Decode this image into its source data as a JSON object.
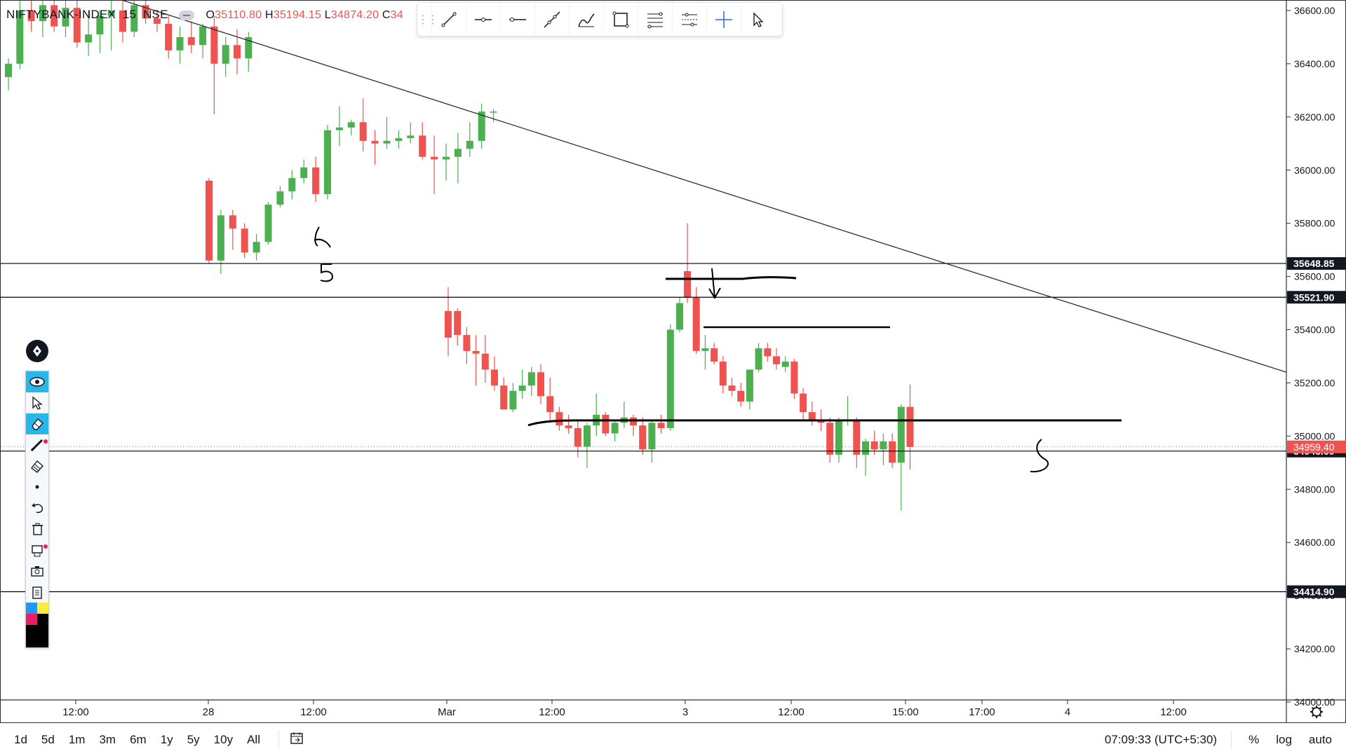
{
  "header": {
    "symbol": "NIFTYBANK-INDEX",
    "interval": "15",
    "exchange": "NSE",
    "ohlc": {
      "o_label": "O",
      "o": "35110.80",
      "h_label": "H",
      "h": "35194.15",
      "l_label": "L",
      "l": "34874.20",
      "c_label": "C",
      "c": "34"
    }
  },
  "drawing_toolbar": {
    "tools": [
      "trend-line",
      "horizontal-ray",
      "horizontal-line",
      "extended-line",
      "brush",
      "rectangle",
      "fib-retracement",
      "parallel-channel",
      "crosshair",
      "cursor"
    ]
  },
  "side_panel": {
    "tools": [
      "eye-icon",
      "cursor-icon",
      "eraser-icon",
      "pen-icon",
      "highlighter-icon",
      "dot-icon",
      "undo-icon",
      "trash-icon",
      "clear-all-icon",
      "camera-icon",
      "clipboard-icon"
    ],
    "palette": [
      "#2196f3",
      "#ffeb3b",
      "#e91e63",
      "#000000",
      "#000000",
      "#000000"
    ]
  },
  "chart_data": {
    "type": "candlestick",
    "symbol": "NIFTYBANK-INDEX",
    "ylim": [
      33900,
      36650
    ],
    "y_ticks": [
      "34000.00",
      "34200.00",
      "34400.00",
      "34600.00",
      "34800.00",
      "35000.00",
      "35200.00",
      "35400.00",
      "35600.00",
      "35800.00",
      "36000.00",
      "36200.00",
      "36400.00",
      "36600.00"
    ],
    "x_ticks": [
      "12:00",
      "28",
      "12:00",
      "Mar",
      "12:00",
      "3",
      "12:00",
      "15:00",
      "17:00",
      "4",
      "12:00"
    ],
    "colors": {
      "up": "#4caf50",
      "down": "#ef5350",
      "line": "#000000",
      "label_bg": "#131722",
      "price_bg": "#ef5350"
    },
    "candles": [
      {
        "o": 36350,
        "h": 36420,
        "l": 36300,
        "c": 36400
      },
      {
        "o": 36400,
        "h": 36650,
        "l": 36380,
        "c": 36600
      },
      {
        "o": 36600,
        "h": 36650,
        "l": 36520,
        "c": 36560
      },
      {
        "o": 36560,
        "h": 36650,
        "l": 36500,
        "c": 36620
      },
      {
        "o": 36620,
        "h": 36650,
        "l": 36520,
        "c": 36540
      },
      {
        "o": 36540,
        "h": 36650,
        "l": 36500,
        "c": 36610
      },
      {
        "o": 36610,
        "h": 36650,
        "l": 36460,
        "c": 36480
      },
      {
        "o": 36480,
        "h": 36600,
        "l": 36430,
        "c": 36510
      },
      {
        "o": 36510,
        "h": 36600,
        "l": 36440,
        "c": 36580
      },
      {
        "o": 36580,
        "h": 36640,
        "l": 36450,
        "c": 36600
      },
      {
        "o": 36600,
        "h": 36650,
        "l": 36480,
        "c": 36520
      },
      {
        "o": 36520,
        "h": 36640,
        "l": 36500,
        "c": 36620
      },
      {
        "o": 36620,
        "h": 36650,
        "l": 36550,
        "c": 36570
      },
      {
        "o": 36570,
        "h": 36600,
        "l": 36520,
        "c": 36550
      },
      {
        "o": 36550,
        "h": 36580,
        "l": 36420,
        "c": 36450
      },
      {
        "o": 36450,
        "h": 36540,
        "l": 36400,
        "c": 36500
      },
      {
        "o": 36500,
        "h": 36560,
        "l": 36440,
        "c": 36470
      },
      {
        "o": 36470,
        "h": 36550,
        "l": 36420,
        "c": 36540
      },
      {
        "o": 36540,
        "h": 36580,
        "l": 36210,
        "c": 36400
      },
      {
        "o": 36400,
        "h": 36500,
        "l": 36350,
        "c": 36470
      },
      {
        "o": 36470,
        "h": 36530,
        "l": 36360,
        "c": 36420
      },
      {
        "o": 36420,
        "h": 36520,
        "l": 36370,
        "c": 36500
      },
      {
        "o": 35960,
        "h": 35970,
        "l": 35650,
        "c": 35660
      },
      {
        "o": 35660,
        "h": 35850,
        "l": 35610,
        "c": 35830
      },
      {
        "o": 35830,
        "h": 35850,
        "l": 35700,
        "c": 35780
      },
      {
        "o": 35780,
        "h": 35800,
        "l": 35670,
        "c": 35690
      },
      {
        "o": 35690,
        "h": 35760,
        "l": 35660,
        "c": 35730
      },
      {
        "o": 35730,
        "h": 35880,
        "l": 35720,
        "c": 35870
      },
      {
        "o": 35870,
        "h": 35940,
        "l": 35860,
        "c": 35920
      },
      {
        "o": 35920,
        "h": 36000,
        "l": 35890,
        "c": 35970
      },
      {
        "o": 35970,
        "h": 36040,
        "l": 35950,
        "c": 36010
      },
      {
        "o": 36010,
        "h": 36050,
        "l": 35880,
        "c": 35910
      },
      {
        "o": 35910,
        "h": 36170,
        "l": 35890,
        "c": 36150
      },
      {
        "o": 36150,
        "h": 36240,
        "l": 36090,
        "c": 36160
      },
      {
        "o": 36160,
        "h": 36190,
        "l": 36130,
        "c": 36180
      },
      {
        "o": 36180,
        "h": 36270,
        "l": 36070,
        "c": 36110
      },
      {
        "o": 36110,
        "h": 36150,
        "l": 36020,
        "c": 36100
      },
      {
        "o": 36100,
        "h": 36200,
        "l": 36080,
        "c": 36110
      },
      {
        "o": 36110,
        "h": 36150,
        "l": 36080,
        "c": 36120
      },
      {
        "o": 36120,
        "h": 36180,
        "l": 36100,
        "c": 36130
      },
      {
        "o": 36130,
        "h": 36180,
        "l": 36040,
        "c": 36050
      },
      {
        "o": 36050,
        "h": 36130,
        "l": 35910,
        "c": 36040
      },
      {
        "o": 36040,
        "h": 36100,
        "l": 35960,
        "c": 36050
      },
      {
        "o": 36050,
        "h": 36140,
        "l": 35950,
        "c": 36080
      },
      {
        "o": 36080,
        "h": 36180,
        "l": 36050,
        "c": 36110
      },
      {
        "o": 36110,
        "h": 36250,
        "l": 36080,
        "c": 36220
      },
      {
        "o": 36220,
        "h": 36230,
        "l": 36180,
        "c": 36220
      },
      {
        "o": 35470,
        "h": 35560,
        "l": 35300,
        "c": 35370
      },
      {
        "o": 35470,
        "h": 35480,
        "l": 35340,
        "c": 35380
      },
      {
        "o": 35380,
        "h": 35410,
        "l": 35270,
        "c": 35320
      },
      {
        "o": 35320,
        "h": 35380,
        "l": 35190,
        "c": 35310
      },
      {
        "o": 35310,
        "h": 35380,
        "l": 35200,
        "c": 35250
      },
      {
        "o": 35250,
        "h": 35300,
        "l": 35170,
        "c": 35190
      },
      {
        "o": 35190,
        "h": 35220,
        "l": 35100,
        "c": 35100
      },
      {
        "o": 35100,
        "h": 35200,
        "l": 35090,
        "c": 35170
      },
      {
        "o": 35170,
        "h": 35250,
        "l": 35140,
        "c": 35190
      },
      {
        "o": 35190,
        "h": 35260,
        "l": 35150,
        "c": 35240
      },
      {
        "o": 35240,
        "h": 35270,
        "l": 35120,
        "c": 35150
      },
      {
        "o": 35150,
        "h": 35220,
        "l": 35050,
        "c": 35090
      },
      {
        "o": 35090,
        "h": 35110,
        "l": 35020,
        "c": 35040
      },
      {
        "o": 35040,
        "h": 35080,
        "l": 35010,
        "c": 35030
      },
      {
        "o": 35030,
        "h": 35060,
        "l": 34920,
        "c": 34960
      },
      {
        "o": 34960,
        "h": 35050,
        "l": 34880,
        "c": 35040
      },
      {
        "o": 35040,
        "h": 35160,
        "l": 35000,
        "c": 35080
      },
      {
        "o": 35080,
        "h": 35090,
        "l": 35000,
        "c": 35010
      },
      {
        "o": 35010,
        "h": 35060,
        "l": 34980,
        "c": 35050
      },
      {
        "o": 35050,
        "h": 35130,
        "l": 35030,
        "c": 35070
      },
      {
        "o": 35070,
        "h": 35080,
        "l": 35000,
        "c": 35040
      },
      {
        "o": 35040,
        "h": 35070,
        "l": 34930,
        "c": 34950
      },
      {
        "o": 34950,
        "h": 35060,
        "l": 34900,
        "c": 35050
      },
      {
        "o": 35050,
        "h": 35080,
        "l": 35010,
        "c": 35030
      },
      {
        "o": 35030,
        "h": 35420,
        "l": 35020,
        "c": 35400
      },
      {
        "o": 35400,
        "h": 35520,
        "l": 35390,
        "c": 35500
      },
      {
        "o": 35620,
        "h": 35800,
        "l": 35500,
        "c": 35520
      },
      {
        "o": 35520,
        "h": 35560,
        "l": 35310,
        "c": 35320
      },
      {
        "o": 35320,
        "h": 35380,
        "l": 35250,
        "c": 35330
      },
      {
        "o": 35330,
        "h": 35350,
        "l": 35270,
        "c": 35280
      },
      {
        "o": 35280,
        "h": 35300,
        "l": 35160,
        "c": 35190
      },
      {
        "o": 35190,
        "h": 35220,
        "l": 35150,
        "c": 35170
      },
      {
        "o": 35170,
        "h": 35200,
        "l": 35110,
        "c": 35130
      },
      {
        "o": 35130,
        "h": 35250,
        "l": 35100,
        "c": 35250
      },
      {
        "o": 35250,
        "h": 35350,
        "l": 35240,
        "c": 35330
      },
      {
        "o": 35330,
        "h": 35350,
        "l": 35280,
        "c": 35300
      },
      {
        "o": 35300,
        "h": 35330,
        "l": 35250,
        "c": 35270
      },
      {
        "o": 35260,
        "h": 35300,
        "l": 35240,
        "c": 35280
      },
      {
        "o": 35280,
        "h": 35290,
        "l": 35140,
        "c": 35160
      },
      {
        "o": 35160,
        "h": 35180,
        "l": 35060,
        "c": 35090
      },
      {
        "o": 35090,
        "h": 35130,
        "l": 35040,
        "c": 35060
      },
      {
        "o": 35060,
        "h": 35100,
        "l": 35020,
        "c": 35050
      },
      {
        "o": 35050,
        "h": 35070,
        "l": 34900,
        "c": 34930
      },
      {
        "o": 34930,
        "h": 35070,
        "l": 34900,
        "c": 35060
      },
      {
        "o": 35060,
        "h": 35150,
        "l": 35040,
        "c": 35060
      },
      {
        "o": 35060,
        "h": 35070,
        "l": 34880,
        "c": 34930
      },
      {
        "o": 34930,
        "h": 34990,
        "l": 34850,
        "c": 34980
      },
      {
        "o": 34980,
        "h": 35020,
        "l": 34930,
        "c": 34950
      },
      {
        "o": 34950,
        "h": 35010,
        "l": 34890,
        "c": 34980
      },
      {
        "o": 34980,
        "h": 35010,
        "l": 34880,
        "c": 34900
      },
      {
        "o": 34900,
        "h": 35120,
        "l": 34720,
        "c": 35110
      },
      {
        "o": 35110,
        "h": 35194,
        "l": 34874,
        "c": 34959
      }
    ],
    "horizontal_lines": [
      {
        "value": 35648.85,
        "label": "35648.85"
      },
      {
        "value": 35521.9,
        "label": "35521.90"
      },
      {
        "value": 34943.6,
        "label": "34943.60"
      },
      {
        "value": 34414.9,
        "label": "34414.90"
      }
    ],
    "current_price": {
      "value": 34959.4,
      "label": "34959.40"
    },
    "trendline": {
      "from": {
        "bar": 0,
        "value": 36650
      },
      "to": {
        "bar": 181,
        "value": 35240
      }
    }
  },
  "bottom_bar": {
    "ranges": [
      "1d",
      "5d",
      "1m",
      "3m",
      "6m",
      "1y",
      "5y",
      "10y",
      "All"
    ],
    "time": "07:09:33 (UTC+5:30)",
    "percent": "%",
    "log": "log",
    "auto": "auto"
  }
}
